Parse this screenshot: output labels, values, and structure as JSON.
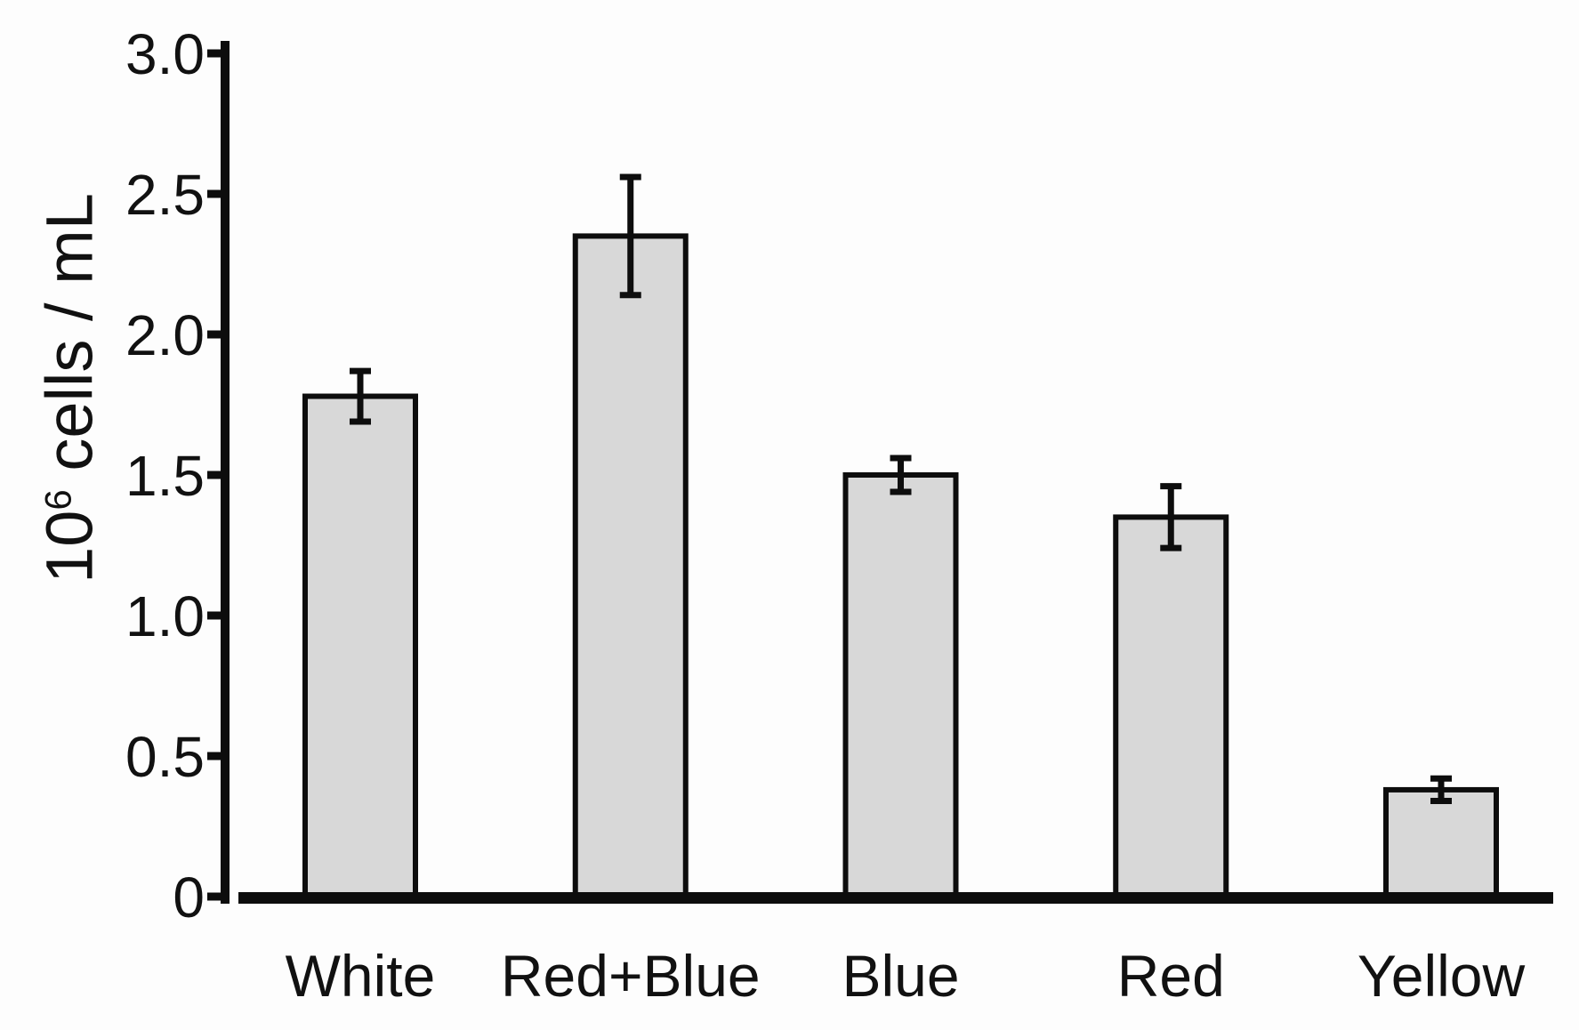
{
  "figure": {
    "background": "#fdfdfd",
    "bar_fill": "#d8d8d8",
    "line_color": "#0d0d0d",
    "text_color": "#111111"
  },
  "chart_data": {
    "type": "bar",
    "title": "",
    "xlabel": "",
    "ylabel": "10⁶ cells / mL",
    "ylabel_parts": {
      "base": "10",
      "sup": "6",
      "rest": " cells / mL"
    },
    "categories": [
      "White",
      "Red+Blue",
      "Blue",
      "Red",
      "Yellow"
    ],
    "values": [
      1.78,
      2.35,
      1.5,
      1.35,
      0.38
    ],
    "errors": [
      0.09,
      0.21,
      0.06,
      0.11,
      0.04
    ],
    "ylim": [
      0,
      3.0
    ],
    "yticks": [
      0,
      0.5,
      1.0,
      1.5,
      2.0,
      2.5,
      3.0
    ],
    "ytick_labels": [
      "0",
      "0.5",
      "1.0",
      "1.5",
      "2.0",
      "2.5",
      "3.0"
    ],
    "grid": false,
    "legend": null,
    "error_bars": true,
    "bar_color": "#d8d8d8",
    "bar_border_color": "#0d0d0d"
  }
}
